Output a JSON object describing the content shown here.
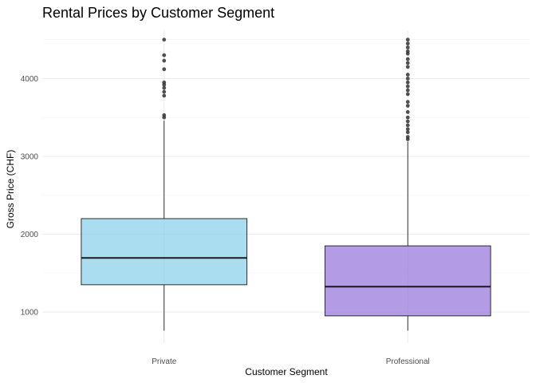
{
  "chart_data": {
    "type": "box",
    "title": "Rental Prices by Customer Segment",
    "xlabel": "Customer Segment",
    "ylabel": "Gross Price (CHF)",
    "categories": [
      "Private",
      "Professional"
    ],
    "ylim": [
      600,
      4620
    ],
    "y_ticks": [
      1000,
      2000,
      3000,
      4000
    ],
    "y_tick_labels": [
      "1000",
      "2000",
      "3000",
      "4000"
    ],
    "grid": true,
    "legend": "none",
    "colors": {
      "Private": "#87ceeb",
      "Professional": "#9370db",
      "outline": "#1a1a1a",
      "outlier": "#333333"
    },
    "boxes": [
      {
        "category": "Private",
        "whisker_low": 760,
        "q1": 1350,
        "median": 1695,
        "q3": 2200,
        "whisker_high": 3460,
        "outliers": [
          3500,
          3530,
          3780,
          3830,
          3880,
          3920,
          3950,
          4120,
          4230,
          4300,
          4500
        ]
      },
      {
        "category": "Professional",
        "whisker_low": 760,
        "q1": 950,
        "median": 1325,
        "q3": 1850,
        "whisker_high": 3190,
        "outliers": [
          3220,
          3250,
          3310,
          3350,
          3400,
          3450,
          3500,
          3570,
          3650,
          3700,
          3800,
          3850,
          3900,
          3950,
          4000,
          4050,
          4150,
          4200,
          4250,
          4320,
          4350,
          4400,
          4450,
          4500
        ]
      }
    ]
  }
}
